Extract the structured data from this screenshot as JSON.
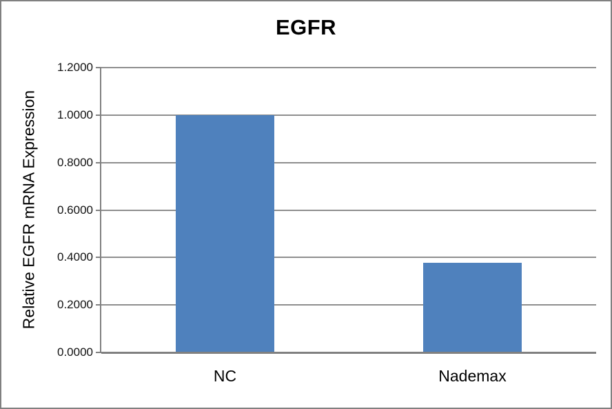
{
  "window": {
    "background": "#ffffff",
    "border_color": "#808080"
  },
  "chart_data": {
    "type": "bar",
    "title": "EGFR",
    "xlabel": "",
    "ylabel": "Relative EGFR mRNA Expression",
    "categories": [
      "NC",
      "Nademax"
    ],
    "values": [
      1.0,
      0.377
    ],
    "ylim": [
      0.0,
      1.2
    ],
    "ytick_step": 0.2,
    "ytick_labels": [
      "0.0000",
      "0.2000",
      "0.4000",
      "0.6000",
      "0.8000",
      "1.0000",
      "1.2000"
    ],
    "grid": true,
    "legend": "none",
    "bar_color": "#4F81BD",
    "gridline_color": "#8E8E8E",
    "axis_color": "#808080",
    "text_color": "#000000"
  }
}
